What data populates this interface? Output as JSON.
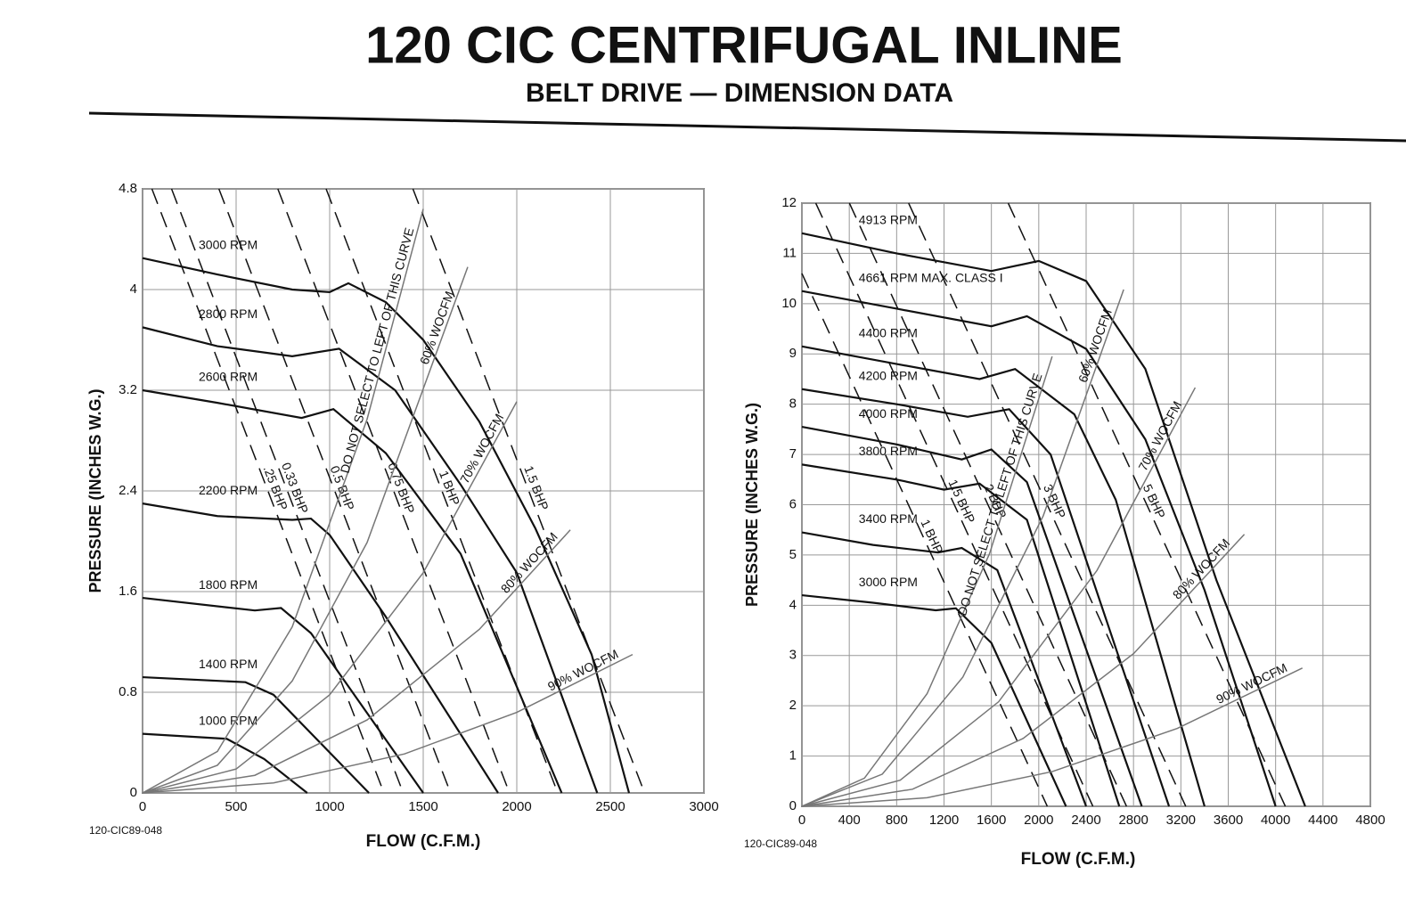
{
  "title": "120 CIC CENTRIFUGAL INLINE",
  "subtitle": "BELT DRIVE — DIMENSION DATA",
  "chart_data": [
    {
      "type": "line",
      "xlabel": "FLOW (C.F.M.)",
      "ylabel": "PRESSURE (INCHES W.G.)",
      "figure_code": "120-CIC89-048",
      "grid": true,
      "xlim": [
        0,
        3000
      ],
      "ylim": [
        0,
        4.8
      ],
      "xticks": [
        0,
        500,
        1000,
        1500,
        2000,
        2500,
        3000
      ],
      "yticks": [
        0,
        0.8,
        1.6,
        2.4,
        3.2,
        4,
        4.8
      ],
      "series": [
        {
          "name": "3000 RPM",
          "color": "#111",
          "line_style": "solid",
          "x": [
            0,
            400,
            800,
            1000,
            1100,
            1300,
            1500,
            1800,
            2100,
            2400,
            2600
          ],
          "values": [
            4.25,
            4.12,
            4.0,
            3.98,
            4.05,
            3.9,
            3.6,
            2.95,
            2.1,
            1.1,
            0
          ]
        },
        {
          "name": "2800 RPM",
          "color": "#111",
          "line_style": "solid",
          "x": [
            0,
            400,
            800,
            1050,
            1350,
            1700,
            2000,
            2430
          ],
          "values": [
            3.7,
            3.55,
            3.47,
            3.53,
            3.2,
            2.45,
            1.75,
            0
          ]
        },
        {
          "name": "2600 RPM",
          "color": "#111",
          "line_style": "solid",
          "x": [
            0,
            400,
            850,
            1020,
            1300,
            1700,
            2240
          ],
          "values": [
            3.2,
            3.1,
            2.98,
            3.05,
            2.7,
            1.9,
            0
          ]
        },
        {
          "name": "2200 RPM",
          "color": "#111",
          "line_style": "solid",
          "x": [
            0,
            400,
            800,
            900,
            1000,
            1300,
            1900
          ],
          "values": [
            2.3,
            2.2,
            2.17,
            2.18,
            2.05,
            1.4,
            0
          ]
        },
        {
          "name": "1800 RPM",
          "color": "#111",
          "line_style": "solid",
          "x": [
            0,
            600,
            740,
            900,
            1500
          ],
          "values": [
            1.55,
            1.45,
            1.47,
            1.27,
            0
          ]
        },
        {
          "name": "1400 RPM",
          "color": "#111",
          "line_style": "solid",
          "x": [
            0,
            550,
            700,
            1210
          ],
          "values": [
            0.92,
            0.88,
            0.78,
            0
          ]
        },
        {
          "name": "1000 RPM",
          "color": "#111",
          "line_style": "solid",
          "x": [
            0,
            450,
            650,
            880
          ],
          "values": [
            0.47,
            0.43,
            0.27,
            0
          ]
        },
        {
          "name": ".25 BHP",
          "color": "#111",
          "line_style": "dashed",
          "x": [
            50,
            1290
          ],
          "values": [
            4.8,
            0
          ]
        },
        {
          "name": "0.33 BHP",
          "color": "#111",
          "line_style": "dashed",
          "x": [
            155,
            1393
          ],
          "values": [
            4.8,
            0
          ]
        },
        {
          "name": "0.5 BHP",
          "color": "#111",
          "line_style": "dashed",
          "x": [
            408,
            1646
          ],
          "values": [
            4.8,
            0
          ]
        },
        {
          "name": "0.75 BHP",
          "color": "#111",
          "line_style": "dashed",
          "x": [
            723,
            1961
          ],
          "values": [
            4.8,
            0
          ]
        },
        {
          "name": "1 BHP",
          "color": "#111",
          "line_style": "dashed",
          "x": [
            981,
            2219
          ],
          "values": [
            4.8,
            0
          ]
        },
        {
          "name": "1.5 BHP",
          "color": "#111",
          "line_style": "dashed",
          "x": [
            1445,
            2683
          ],
          "values": [
            4.8,
            0
          ]
        },
        {
          "name": "DO NOT SELECT TO LEFT OF THIS CURVE",
          "color": "#777",
          "line_style": "solid",
          "x": [
            0,
            400,
            800,
            1200,
            1500
          ],
          "values": [
            0,
            0.33,
            1.32,
            2.97,
            4.64
          ]
        },
        {
          "name": "60% WOCFM",
          "color": "#777",
          "line_style": "solid",
          "x": [
            0,
            400,
            800,
            1200,
            1738
          ],
          "values": [
            0,
            0.22,
            0.89,
            1.99,
            4.18
          ]
        },
        {
          "name": "70% WOCFM",
          "color": "#777",
          "line_style": "solid",
          "x": [
            0,
            500,
            1000,
            1500,
            2000
          ],
          "values": [
            0,
            0.19,
            0.78,
            1.75,
            3.11
          ]
        },
        {
          "name": "80% WOCFM",
          "color": "#777",
          "line_style": "solid",
          "x": [
            0,
            600,
            1200,
            1800,
            2286
          ],
          "values": [
            0,
            0.14,
            0.58,
            1.3,
            2.09
          ]
        },
        {
          "name": "90% WOCFM",
          "color": "#777",
          "line_style": "solid",
          "x": [
            0,
            700,
            1400,
            2000,
            2619
          ],
          "values": [
            0,
            0.08,
            0.31,
            0.64,
            1.1
          ]
        }
      ]
    },
    {
      "type": "line",
      "xlabel": "FLOW (C.F.M.)",
      "ylabel": "PRESSURE (INCHES W.G.)",
      "figure_code": "120-CIC89-048",
      "grid": true,
      "xlim": [
        0,
        4800
      ],
      "ylim": [
        0,
        12
      ],
      "xticks": [
        0,
        400,
        800,
        1200,
        1600,
        2000,
        2400,
        2800,
        3200,
        3600,
        4000,
        4400,
        4800
      ],
      "yticks": [
        0,
        1,
        2,
        3,
        4,
        5,
        6,
        7,
        8,
        9,
        10,
        11,
        12
      ],
      "series": [
        {
          "name": "4913 RPM",
          "color": "#111",
          "line_style": "solid",
          "x": [
            0,
            800,
            1600,
            2000,
            2400,
            2900,
            3500,
            4250
          ],
          "values": [
            11.4,
            11.0,
            10.65,
            10.85,
            10.45,
            8.7,
            4.5,
            0
          ]
        },
        {
          "name": "4661 RPM MAX. CLASS I",
          "color": "#111",
          "line_style": "solid",
          "x": [
            0,
            800,
            1600,
            1900,
            2400,
            2900,
            3400,
            4000
          ],
          "values": [
            10.25,
            9.9,
            9.55,
            9.75,
            9.1,
            7.3,
            4.3,
            0
          ]
        },
        {
          "name": "4400 RPM",
          "color": "#111",
          "line_style": "solid",
          "x": [
            0,
            800,
            1500,
            1800,
            2300,
            2650,
            3400
          ],
          "values": [
            9.15,
            8.8,
            8.5,
            8.7,
            7.8,
            6.1,
            0
          ]
        },
        {
          "name": "4200 RPM",
          "color": "#111",
          "line_style": "solid",
          "x": [
            0,
            800,
            1400,
            1750,
            2100,
            3100
          ],
          "values": [
            8.3,
            8.0,
            7.75,
            7.9,
            7.0,
            0
          ]
        },
        {
          "name": "4000 RPM",
          "color": "#111",
          "line_style": "solid",
          "x": [
            0,
            800,
            1350,
            1600,
            1900,
            2870
          ],
          "values": [
            7.55,
            7.2,
            6.9,
            7.1,
            6.45,
            0
          ]
        },
        {
          "name": "3800 RPM",
          "color": "#111",
          "line_style": "solid",
          "x": [
            0,
            800,
            1200,
            1500,
            1900,
            2680
          ],
          "values": [
            6.8,
            6.5,
            6.3,
            6.42,
            5.7,
            0
          ]
        },
        {
          "name": "3400 RPM",
          "color": "#111",
          "line_style": "solid",
          "x": [
            0,
            600,
            1150,
            1350,
            1650,
            2400
          ],
          "values": [
            5.45,
            5.2,
            5.05,
            5.14,
            4.7,
            0
          ]
        },
        {
          "name": "3000 RPM",
          "color": "#111",
          "line_style": "solid",
          "x": [
            0,
            600,
            1130,
            1300,
            1600,
            2230
          ],
          "values": [
            4.2,
            4.05,
            3.9,
            3.94,
            3.25,
            0
          ]
        },
        {
          "name": "1 BHP",
          "color": "#111",
          "line_style": "dashed",
          "x": [
            0,
            2072
          ],
          "values": [
            10.6,
            0
          ]
        },
        {
          "name": "1.5 BHP",
          "color": "#111",
          "line_style": "dashed",
          "x": [
            117,
            2457
          ],
          "values": [
            12,
            0
          ]
        },
        {
          "name": "2 BHP",
          "color": "#111",
          "line_style": "dashed",
          "x": [
            401,
            2741
          ],
          "values": [
            12,
            0
          ]
        },
        {
          "name": "3 BHP",
          "color": "#111",
          "line_style": "dashed",
          "x": [
            901,
            3241
          ],
          "values": [
            12,
            0
          ]
        },
        {
          "name": "5 BHP",
          "color": "#111",
          "line_style": "dashed",
          "x": [
            1742,
            4082
          ],
          "values": [
            12,
            0
          ]
        },
        {
          "name": "DO NOT SELECT TO LEFT OF THIS CURVE",
          "color": "#777",
          "line_style": "solid",
          "x": [
            0,
            528,
            1057,
            1585,
            2113
          ],
          "values": [
            0,
            0.56,
            2.24,
            5.03,
            8.95
          ]
        },
        {
          "name": "60% WOCFM",
          "color": "#777",
          "line_style": "solid",
          "x": [
            0,
            679,
            1359,
            2038,
            2717
          ],
          "values": [
            0,
            0.64,
            2.57,
            5.78,
            10.28
          ]
        },
        {
          "name": "70% WOCFM",
          "color": "#777",
          "line_style": "solid",
          "x": [
            0,
            830,
            1661,
            2491,
            3321
          ],
          "values": [
            0,
            0.52,
            2.08,
            4.69,
            8.33
          ]
        },
        {
          "name": "80% WOCFM",
          "color": "#777",
          "line_style": "solid",
          "x": [
            0,
            934,
            1868,
            2802,
            3736
          ],
          "values": [
            0,
            0.34,
            1.35,
            3.04,
            5.41
          ]
        },
        {
          "name": "90% WOCFM",
          "color": "#777",
          "line_style": "solid",
          "x": [
            0,
            1057,
            2113,
            3170,
            4226
          ],
          "values": [
            0,
            0.17,
            0.69,
            1.55,
            2.75
          ]
        }
      ]
    }
  ]
}
